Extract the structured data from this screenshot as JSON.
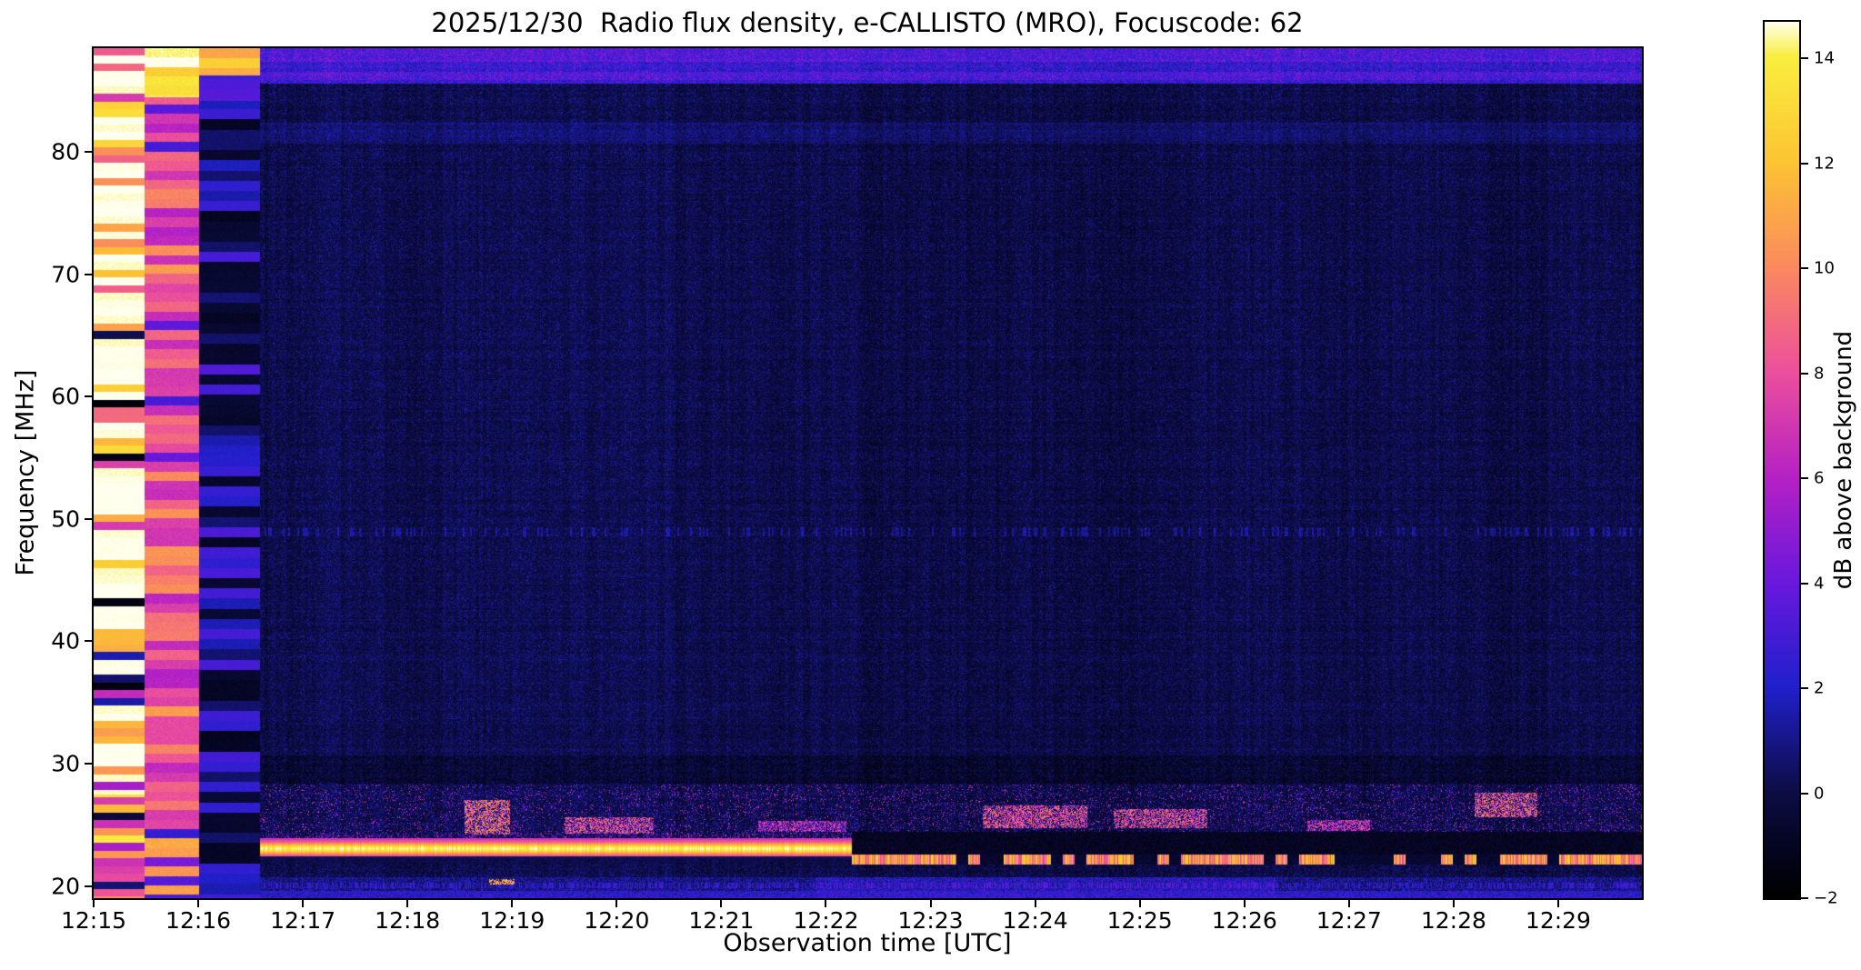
{
  "chart_data": {
    "type": "heatmap",
    "title": "2025/12/30  Radio flux density, e-CALLISTO (MRO), Focuscode: 62",
    "xlabel": "Observation time [UTC]",
    "ylabel": "Frequency [MHz]",
    "x_ticks": [
      "12:15",
      "12:16",
      "12:17",
      "12:18",
      "12:19",
      "12:20",
      "12:21",
      "12:22",
      "12:23",
      "12:24",
      "12:25",
      "12:26",
      "12:27",
      "12:28",
      "12:29"
    ],
    "x_tick_positions_min": [
      15,
      16,
      17,
      18,
      19,
      20,
      21,
      22,
      23,
      24,
      25,
      26,
      27,
      28,
      29
    ],
    "x_range_minutes": [
      15.0,
      29.8
    ],
    "y_ticks_mhz": [
      20,
      30,
      40,
      50,
      60,
      70,
      80
    ],
    "y_range_mhz": [
      19.0,
      88.5
    ],
    "grid": false,
    "colorbar": {
      "label": "dB above background",
      "ticks": [
        14,
        12,
        10,
        8,
        6,
        4,
        2,
        0,
        -2
      ],
      "vmin": -2,
      "vmax": 14.7,
      "colormap_stops": [
        [
          0.0,
          "#000000"
        ],
        [
          0.06,
          "#050522"
        ],
        [
          0.12,
          "#0d0d45"
        ],
        [
          0.24,
          "#2020cc"
        ],
        [
          0.36,
          "#6a18dd"
        ],
        [
          0.48,
          "#b621c4"
        ],
        [
          0.6,
          "#ec4f9c"
        ],
        [
          0.72,
          "#fa8a5e"
        ],
        [
          0.84,
          "#fcc433"
        ],
        [
          0.96,
          "#f9ee3f"
        ],
        [
          1.0,
          "#ffffee"
        ]
      ]
    },
    "background_level_db": -0.4,
    "seed": 1337,
    "features": {
      "startup_columns": [
        {
          "t": [
            15.0,
            15.49
          ],
          "description": "saturated white/yellow calibration column",
          "level_db": 14.5
        },
        {
          "t": [
            15.49,
            16.01
          ],
          "description": "pink/magenta column, yellow above 84 MHz",
          "level_db": 8
        },
        {
          "t": [
            16.01,
            16.59
          ],
          "description": "dark column with blue bands, orange top rows",
          "level_db": 0
        }
      ],
      "top_blue_band_mhz": [
        85.6,
        88.5
      ],
      "band_81mhz": [
        80.7,
        82.4
      ],
      "emission_line": {
        "t": [
          16.59,
          22.25
        ],
        "f_mhz": [
          22.5,
          23.6
        ],
        "level_db": 13.5
      },
      "fragmented_line": {
        "t": [
          22.25,
          29.8
        ],
        "f_mhz": [
          21.75,
          22.55
        ],
        "level_db": 10.5
      },
      "dark_band_post": {
        "t": [
          22.25,
          29.8
        ],
        "f_mhz": [
          22.55,
          24.45
        ]
      },
      "rfi_speckle_band_mhz": [
        23.8,
        28.3
      ],
      "rfi_blobs": [
        {
          "t": [
            18.55,
            18.98
          ],
          "f": [
            24.2,
            27.0
          ],
          "level_db": 9
        },
        {
          "t": [
            18.78,
            19.02
          ],
          "f": [
            20.1,
            20.55
          ],
          "level_db": 11
        },
        {
          "t": [
            19.5,
            20.35
          ],
          "f": [
            24.3,
            25.6
          ],
          "level_db": 8
        },
        {
          "t": [
            21.35,
            22.2
          ],
          "f": [
            24.4,
            25.3
          ],
          "level_db": 6.5
        },
        {
          "t": [
            23.5,
            24.5
          ],
          "f": [
            24.7,
            26.6
          ],
          "level_db": 8
        },
        {
          "t": [
            24.75,
            25.65
          ],
          "f": [
            24.7,
            26.3
          ],
          "level_db": 8
        },
        {
          "t": [
            26.6,
            27.2
          ],
          "f": [
            24.5,
            25.4
          ],
          "level_db": 7
        },
        {
          "t": [
            28.2,
            28.8
          ],
          "f": [
            25.6,
            27.6
          ],
          "level_db": 8.5
        }
      ],
      "bottom_speckle_band_mhz": [
        19.0,
        20.7
      ],
      "dark_band_29mhz": [
        28.4,
        30.7
      ],
      "dotted_row_49mhz": [
        48.6,
        49.3
      ]
    }
  }
}
